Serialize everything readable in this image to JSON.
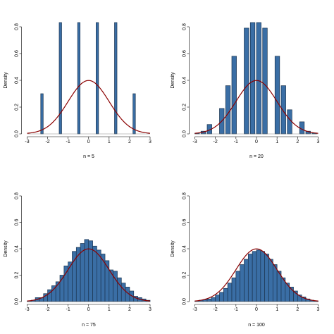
{
  "colors": {
    "bar_fill": "#3a6ea5",
    "bar_stroke": "#1c3551",
    "curve": "#8b0000",
    "axis": "#000000"
  },
  "chart_data": [
    {
      "type": "bar",
      "subtype": "histogram-with-density-curve",
      "xlabel": "n = 5",
      "ylabel": "Density",
      "xlim": [
        -3,
        3
      ],
      "ylim": [
        0,
        0.8
      ],
      "xticks": [
        "-3",
        "-2",
        "-1",
        "0",
        "1",
        "2",
        "3"
      ],
      "yticks": [
        "0.0",
        "0.2",
        "0.4",
        "0.6",
        "0.8"
      ],
      "bins": {
        "left": [
          -2.336,
          -1.436,
          -0.536,
          0.364,
          1.264,
          2.164
        ],
        "width": 0.12,
        "values": [
          0.3,
          1.0,
          1.0,
          1.0,
          1.0,
          0.3
        ]
      },
      "curve": "standard normal density"
    },
    {
      "type": "bar",
      "subtype": "histogram-with-density-curve",
      "xlabel": "n = 20",
      "ylabel": "Density",
      "xlim": [
        -3,
        3
      ],
      "ylim": [
        0,
        0.8
      ],
      "xticks": [
        "-3",
        "-2",
        "-1",
        "0",
        "1",
        "2",
        "3"
      ],
      "yticks": [
        "0.0",
        "0.2",
        "0.4",
        "0.6",
        "0.8"
      ],
      "bins": {
        "left": [
          -3.0,
          -2.7,
          -2.4,
          -2.1,
          -1.8,
          -1.5,
          -1.2,
          -0.9,
          -0.6,
          -0.3,
          0.0,
          0.3,
          0.6,
          0.9,
          1.2,
          1.5,
          1.8,
          2.1,
          2.4,
          2.7
        ],
        "width": 0.225,
        "values": [
          0.005,
          0.02,
          0.07,
          0.0,
          0.19,
          0.36,
          0.58,
          0.0,
          0.79,
          0.84,
          0.84,
          0.79,
          0.0,
          0.58,
          0.36,
          0.18,
          0.0,
          0.09,
          0.02,
          0.005
        ]
      },
      "curve": "standard normal density"
    },
    {
      "type": "bar",
      "subtype": "histogram-with-density-curve",
      "xlabel": "n = 75",
      "ylabel": "Density",
      "xlim": [
        -3,
        3
      ],
      "ylim": [
        0,
        0.8
      ],
      "xticks": [
        "-3",
        "-2",
        "-1",
        "0",
        "1",
        "2",
        "3"
      ],
      "yticks": [
        "0.0",
        "0.2",
        "0.4",
        "0.6",
        "0.8"
      ],
      "bins": {
        "left": [
          -3.2,
          -3.0,
          -2.8,
          -2.6,
          -2.4,
          -2.2,
          -2.0,
          -1.8,
          -1.6,
          -1.4,
          -1.2,
          -1.0,
          -0.8,
          -0.6,
          -0.4,
          -0.2,
          0.0,
          0.2,
          0.4,
          0.6,
          0.8,
          1.0,
          1.2,
          1.4,
          1.6,
          1.8,
          2.0,
          2.2,
          2.4,
          2.6,
          2.8
        ],
        "width": 0.2,
        "values": [
          0.0,
          0.005,
          0.01,
          0.03,
          0.03,
          0.06,
          0.09,
          0.12,
          0.15,
          0.2,
          0.27,
          0.3,
          0.38,
          0.41,
          0.44,
          0.47,
          0.46,
          0.42,
          0.39,
          0.36,
          0.31,
          0.24,
          0.23,
          0.18,
          0.14,
          0.11,
          0.08,
          0.04,
          0.03,
          0.02,
          0.01
        ]
      },
      "curve": "standard normal density"
    },
    {
      "type": "bar",
      "subtype": "histogram-with-density-curve",
      "xlabel": "n = 100",
      "ylabel": "Density",
      "xlim": [
        -3,
        3
      ],
      "ylim": [
        0,
        0.8
      ],
      "xticks": [
        "-3",
        "-2",
        "-1",
        "0",
        "1",
        "2",
        "3"
      ],
      "yticks": [
        "0.0",
        "0.2",
        "0.4",
        "0.6",
        "0.8"
      ],
      "bins": {
        "left": [
          -3.0,
          -2.8,
          -2.6,
          -2.4,
          -2.2,
          -2.0,
          -1.8,
          -1.6,
          -1.4,
          -1.2,
          -1.0,
          -0.8,
          -0.6,
          -0.4,
          -0.2,
          0.0,
          0.2,
          0.4,
          0.6,
          0.8,
          1.0,
          1.2,
          1.4,
          1.6,
          1.8,
          2.0,
          2.2,
          2.4,
          2.6,
          2.8
        ],
        "width": 0.2,
        "values": [
          0.005,
          0.01,
          0.015,
          0.02,
          0.03,
          0.05,
          0.07,
          0.1,
          0.14,
          0.18,
          0.23,
          0.28,
          0.32,
          0.36,
          0.38,
          0.39,
          0.38,
          0.36,
          0.32,
          0.28,
          0.23,
          0.18,
          0.14,
          0.11,
          0.08,
          0.05,
          0.035,
          0.02,
          0.01,
          0.005
        ]
      },
      "curve": "standard normal density"
    }
  ]
}
